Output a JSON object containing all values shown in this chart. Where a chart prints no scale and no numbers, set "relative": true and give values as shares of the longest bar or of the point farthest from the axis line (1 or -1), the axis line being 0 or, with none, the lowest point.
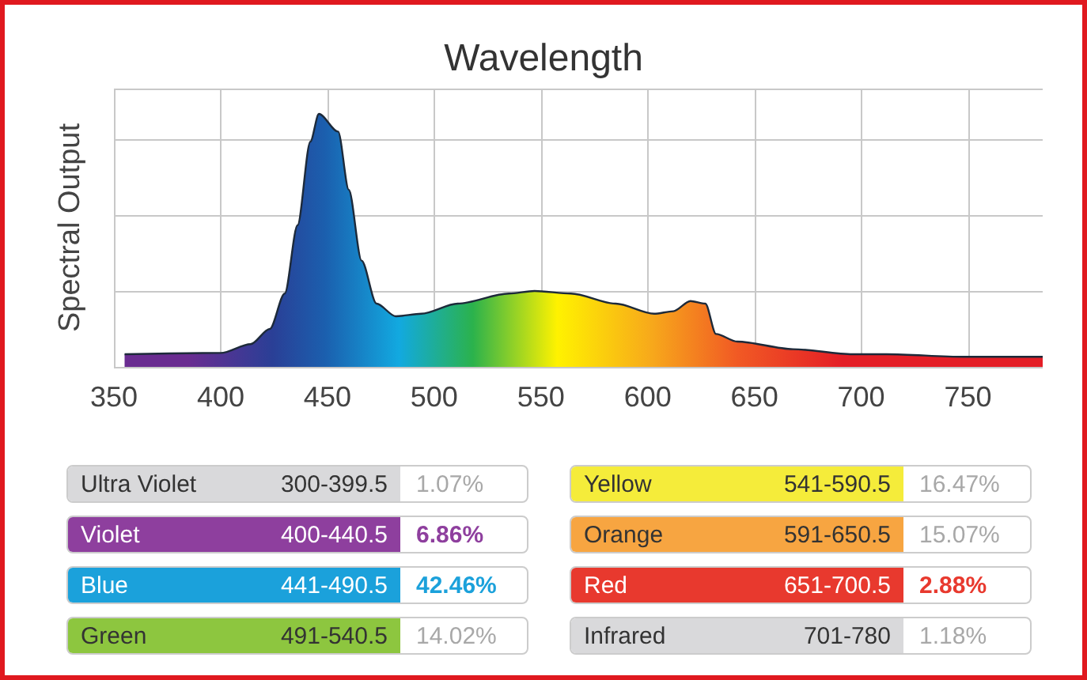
{
  "chart_data": [
    {
      "type": "area",
      "title": "Wavelength",
      "ylabel": "Spectral Output",
      "relative": true,
      "grid": true,
      "xlim": [
        350,
        785
      ],
      "xticks": [
        350,
        400,
        450,
        500,
        550,
        600,
        650,
        700,
        750
      ],
      "x": [
        355,
        400,
        414,
        423,
        430,
        436,
        442,
        446,
        455,
        460,
        466,
        473,
        482,
        494,
        511,
        535,
        547,
        564,
        585,
        603,
        612,
        620,
        627,
        632,
        642,
        668,
        696,
        712,
        748,
        785
      ],
      "series": [
        {
          "color": "#1d2a3a",
          "values": [
            0.05,
            0.055,
            0.09,
            0.15,
            0.29,
            0.56,
            0.89,
            1.0,
            0.93,
            0.7,
            0.42,
            0.25,
            0.2,
            0.21,
            0.25,
            0.29,
            0.3,
            0.29,
            0.25,
            0.21,
            0.22,
            0.26,
            0.25,
            0.13,
            0.1,
            0.07,
            0.05,
            0.05,
            0.04,
            0.04
          ]
        }
      ]
    },
    {
      "type": "other",
      "categories": [
        "Ultra Violet",
        "Violet",
        "Blue",
        "Green",
        "Yellow",
        "Orange",
        "Red",
        "Infrared"
      ],
      "annotations": [
        "300-399.5",
        "400-440.5",
        "441-490.5",
        "491-540.5",
        "541-590.5",
        "591-650.5",
        "651-700.5",
        "701-780"
      ],
      "value_labels": [
        "1.07%",
        "6.86%",
        "42.46%",
        "14.02%",
        "16.47%",
        "15.07%",
        "2.88%",
        "1.18%"
      ],
      "colors": [
        "#d9d9db",
        "#8e3f9e",
        "#1ba1db",
        "#8dc63f",
        "#f5ec3a",
        "#f7a541",
        "#e8392e",
        "#d9d9db"
      ]
    }
  ]
}
